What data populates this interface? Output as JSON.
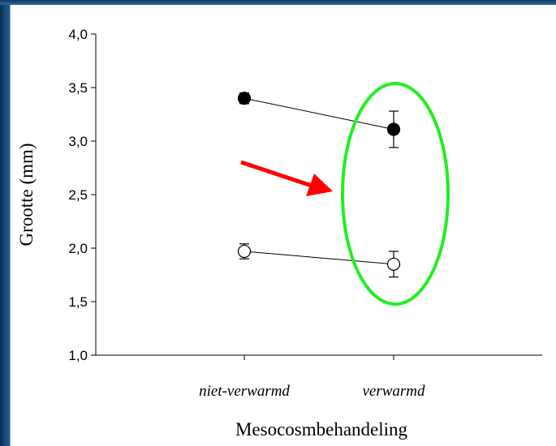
{
  "chart_data": {
    "type": "scatter",
    "categories": [
      "niet-verwarmd",
      "verwarmd"
    ],
    "xlabel": "Mesocosmbehandeling",
    "ylabel": "Grootte (mm)",
    "ylim": [
      1.0,
      4.0
    ],
    "yticks": [
      "1,0",
      "1,5",
      "2,0",
      "2,5",
      "3,0",
      "3,5",
      "4,0"
    ],
    "grid": false,
    "series": [
      {
        "marker": "filled-circle",
        "values": [
          3.4,
          3.11
        ],
        "errors": [
          0.05,
          0.17
        ]
      },
      {
        "marker": "open-circle",
        "values": [
          1.97,
          1.85
        ],
        "errors": [
          0.07,
          0.12
        ]
      }
    ],
    "annotations": [
      {
        "kind": "arrow",
        "color": "#ff0000",
        "points_to": "verwarmd"
      },
      {
        "kind": "ellipse",
        "color": "#22ee22",
        "encircles": "verwarmd"
      }
    ]
  }
}
